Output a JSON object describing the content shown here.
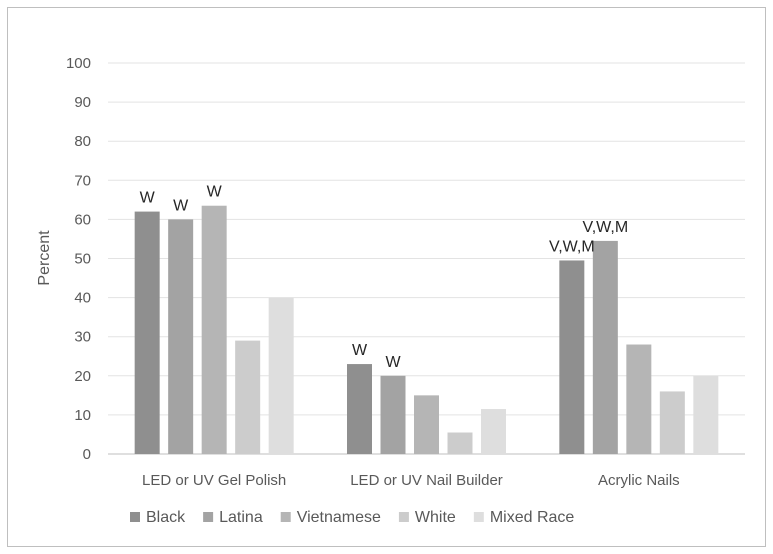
{
  "chart_data": {
    "type": "bar",
    "ylabel": "Percent",
    "xlabel": "",
    "ylim": [
      0,
      100
    ],
    "yticks": [
      0,
      10,
      20,
      30,
      40,
      50,
      60,
      70,
      80,
      90,
      100
    ],
    "grid": true,
    "legend": "bottom",
    "categories": [
      "LED or UV Gel Polish",
      "LED or UV Nail Builder",
      "Acrylic Nails"
    ],
    "series": [
      {
        "name": "Black",
        "color": "#8f8f8f",
        "values": [
          62,
          23,
          49.5
        ],
        "labels": [
          "W",
          "W",
          "V,W,M"
        ]
      },
      {
        "name": "Latina",
        "color": "#a3a3a3",
        "values": [
          60,
          20,
          54.5
        ],
        "labels": [
          "W",
          "W",
          "V,W,M"
        ]
      },
      {
        "name": "Vietnamese",
        "color": "#b5b5b5",
        "values": [
          63.5,
          15,
          28
        ],
        "labels": [
          "W",
          "",
          ""
        ]
      },
      {
        "name": "White",
        "color": "#cccccc",
        "values": [
          29,
          5.5,
          16
        ],
        "labels": [
          "",
          "",
          ""
        ]
      },
      {
        "name": "Mixed Race",
        "color": "#dedede",
        "values": [
          40,
          11.5,
          20
        ],
        "labels": [
          "",
          "",
          ""
        ]
      }
    ]
  }
}
